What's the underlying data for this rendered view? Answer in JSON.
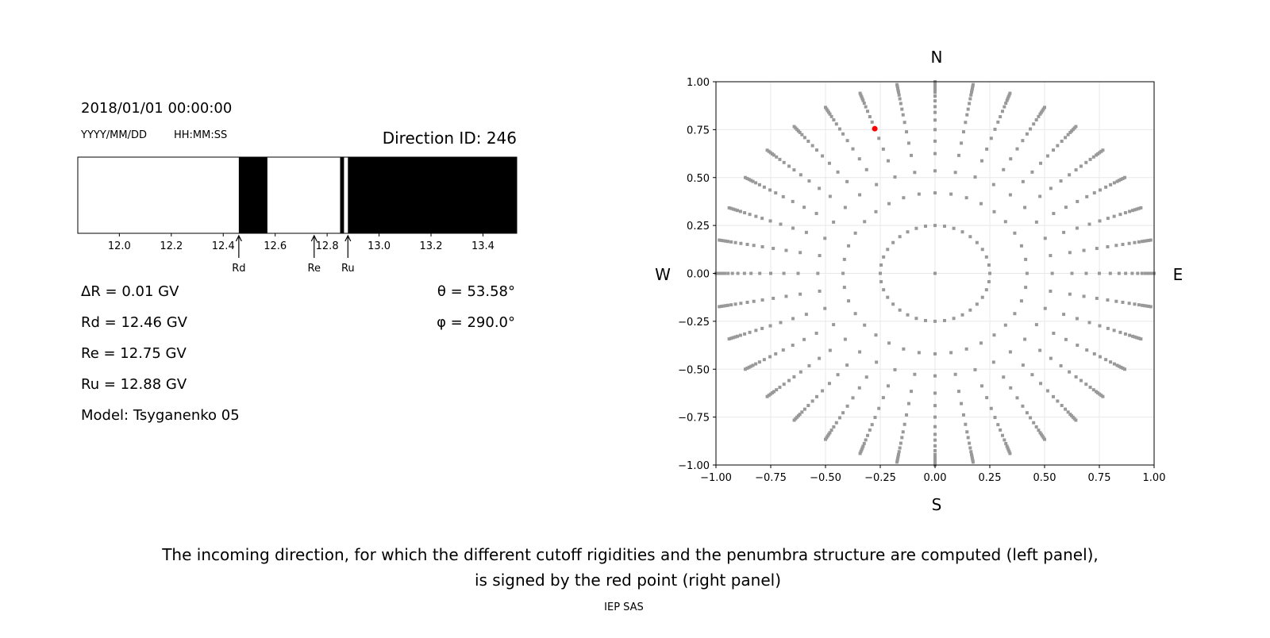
{
  "chart_data": [
    {
      "type": "bar",
      "subtype": "penumbra-strip",
      "datetime": "2018/01/01 00:00:00",
      "date_format_label": "YYYY/MM/DD",
      "time_format_label": "HH:MM:SS",
      "direction_id": "Direction ID: 246",
      "xlim": [
        11.84,
        13.53
      ],
      "xticks": [
        "12.0",
        "12.2",
        "12.4",
        "12.6",
        "12.8",
        "13.0",
        "13.2",
        "13.4"
      ],
      "black_segments_GV": [
        [
          12.46,
          12.57
        ],
        [
          12.85,
          12.865
        ],
        [
          12.88,
          13.53
        ]
      ],
      "markers": [
        {
          "label": "Rd",
          "value": 12.46
        },
        {
          "label": "Re",
          "value": 12.75
        },
        {
          "label": "Ru",
          "value": 12.88
        }
      ],
      "params": {
        "dR": "ΔR = 0.01 GV",
        "rd": "Rd = 12.46 GV",
        "re": "Re = 12.75 GV",
        "ru": "Ru = 12.88 GV",
        "model": "Model: Tsyganenko 05",
        "theta": "θ = 53.58°",
        "phi": "φ = 290.0°"
      }
    },
    {
      "type": "scatter",
      "xlim": [
        -1,
        1
      ],
      "ylim": [
        -1,
        1
      ],
      "xticks": [
        "−1.00",
        "−0.75",
        "−0.50",
        "−0.25",
        "0.00",
        "0.25",
        "0.50",
        "0.75",
        "1.00"
      ],
      "yticks": [
        "−1.00",
        "−0.75",
        "−0.50",
        "−0.25",
        "0.00",
        "0.25",
        "0.50",
        "0.75",
        "1.00"
      ],
      "grid": true,
      "compass": {
        "n": "N",
        "s": "S",
        "w": "W",
        "e": "E"
      },
      "direction_grid": {
        "center": [
          0,
          0
        ],
        "azimuth_step_deg": 10,
        "radii": [
          0.25,
          0.42,
          0.535,
          0.625,
          0.69,
          0.75,
          0.8,
          0.84,
          0.87,
          0.9,
          0.925,
          0.945,
          0.96,
          0.97,
          0.98,
          0.99,
          1.0
        ]
      },
      "point_color": "#999999",
      "selected_point": {
        "x": -0.275,
        "y": 0.755,
        "color": "#ff0000"
      }
    }
  ],
  "caption": {
    "line1": "The incoming direction, for which the different cutoff rigidities and the penumbra structure are computed (left panel),",
    "line2": "is signed by the red point (right panel)",
    "footer": "IEP SAS"
  }
}
